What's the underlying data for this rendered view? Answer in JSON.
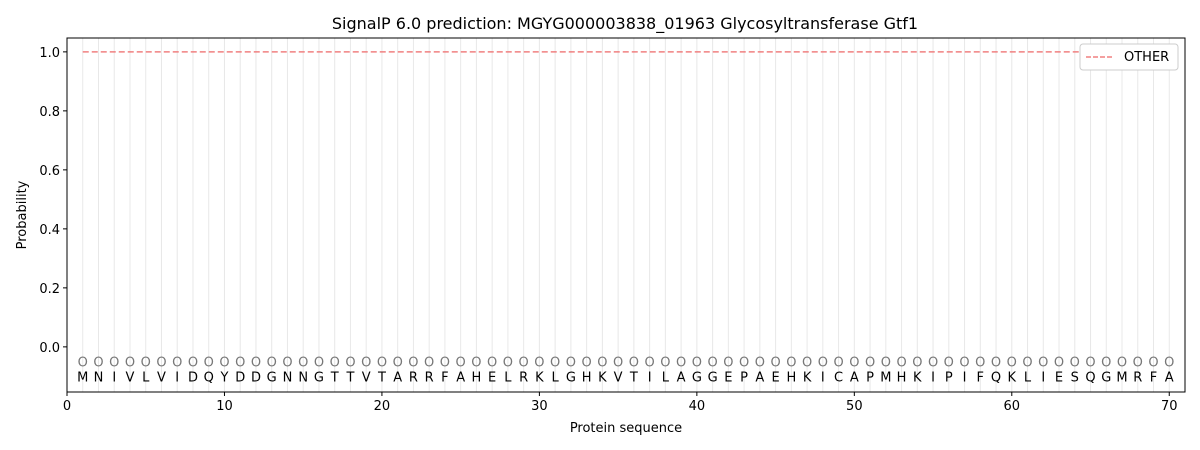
{
  "chart_data": {
    "type": "line",
    "title": "SignalP 6.0 prediction: MGYG000003838_01963 Glycosyltransferase Gtf1",
    "xlabel": "Protein sequence",
    "ylabel": "Probability",
    "xlim": [
      0,
      71
    ],
    "ylim": [
      -0.153,
      1.047
    ],
    "xticks": [
      0,
      10,
      20,
      30,
      40,
      50,
      60,
      70
    ],
    "yticks": [
      0.0,
      0.2,
      0.4,
      0.6,
      0.8,
      1.0
    ],
    "ytick_labels": [
      "0.0",
      "0.2",
      "0.4",
      "0.6",
      "0.8",
      "1.0"
    ],
    "grid": "vertical lines at each residue",
    "legend_placement": "top-right",
    "sequence": "MNIVLVIDQYDDGNNGTTVTARRFAHELRKLGHKVTILAGGEPAEHKICAPMHKIPIFQKLIESQGMRFA",
    "predicted_labels": "OOOOOOOOOOOOOOOOOOOOOOOOOOOOOOOOOOOOOOOOOOOOOOOOOOOOOOOOOOOOOOOOOOOOOO",
    "series": [
      {
        "name": "OTHER",
        "color": "#f08080",
        "style": "dashed",
        "x_start": 1,
        "x_end": 70,
        "value": 1.0
      }
    ]
  }
}
